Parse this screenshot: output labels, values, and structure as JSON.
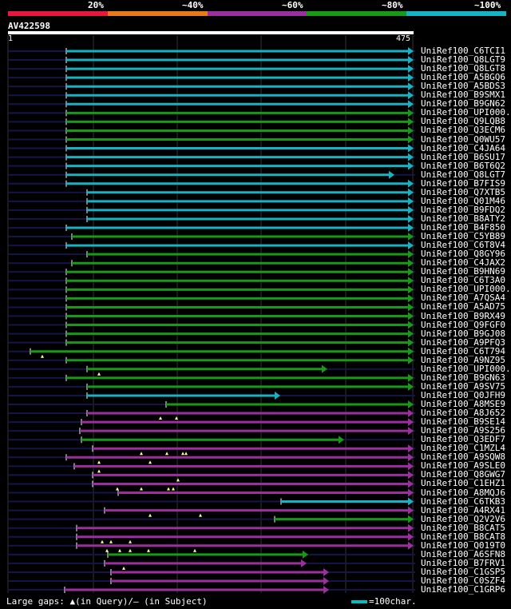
{
  "legend": {
    "labels": [
      "20%",
      "~40%",
      "~60%",
      "~80%",
      "~100%"
    ],
    "colors": [
      "#e8173c",
      "#e87a1b",
      "#9b2fa0",
      "#189a18",
      "#16b3c4"
    ]
  },
  "query": {
    "id": "AV422598",
    "start": "1",
    "end": "475"
  },
  "footer": {
    "gaps_text": "Large gaps: ▲(in Query)/– (in Subject)",
    "scale_text": "=100char."
  },
  "rows": [
    {
      "label": "UniRef100_C6TCI1",
      "color": "cyan",
      "x1": 83,
      "x2": 511
    },
    {
      "label": "UniRef100_Q8LGT9",
      "color": "cyan",
      "x1": 83,
      "x2": 511
    },
    {
      "label": "UniRef100_Q8LGT8",
      "color": "cyan",
      "x1": 83,
      "x2": 511
    },
    {
      "label": "UniRef100_A5BGQ6",
      "color": "cyan",
      "x1": 83,
      "x2": 511
    },
    {
      "label": "UniRef100_A5BDS3",
      "color": "cyan",
      "x1": 83,
      "x2": 511
    },
    {
      "label": "UniRef100_B9SMX1",
      "color": "cyan",
      "x1": 83,
      "x2": 511
    },
    {
      "label": "UniRef100_B9GN62",
      "color": "cyan",
      "x1": 83,
      "x2": 511
    },
    {
      "label": "UniRef100_UPI000..",
      "color": "green",
      "x1": 83,
      "x2": 511
    },
    {
      "label": "UniRef100_Q9LQB8",
      "color": "green",
      "x1": 83,
      "x2": 511
    },
    {
      "label": "UniRef100_Q3ECM6",
      "color": "green",
      "x1": 83,
      "x2": 511
    },
    {
      "label": "UniRef100_Q0WU57",
      "color": "green",
      "x1": 83,
      "x2": 511
    },
    {
      "label": "UniRef100_C4JA64",
      "color": "cyan",
      "x1": 83,
      "x2": 511
    },
    {
      "label": "UniRef100_B6SU17",
      "color": "cyan",
      "x1": 83,
      "x2": 511
    },
    {
      "label": "UniRef100_B6T6Q2",
      "color": "cyan",
      "x1": 83,
      "x2": 511
    },
    {
      "label": "UniRef100_Q8LGT7",
      "color": "cyan",
      "x1": 83,
      "x2": 487
    },
    {
      "label": "UniRef100_B7FIS9",
      "color": "cyan",
      "x1": 83,
      "x2": 511
    },
    {
      "label": "UniRef100_Q7XTB5",
      "color": "cyan",
      "x1": 109,
      "x2": 511
    },
    {
      "label": "UniRef100_Q01M46",
      "color": "cyan",
      "x1": 109,
      "x2": 511
    },
    {
      "label": "UniRef100_B9FDQ2",
      "color": "cyan",
      "x1": 109,
      "x2": 511
    },
    {
      "label": "UniRef100_B8ATY2",
      "color": "cyan",
      "x1": 109,
      "x2": 511
    },
    {
      "label": "UniRef100_B4F850",
      "color": "cyan",
      "x1": 83,
      "x2": 511
    },
    {
      "label": "UniRef100_C5YB89",
      "color": "green",
      "x1": 90,
      "x2": 511
    },
    {
      "label": "UniRef100_C6T8V4",
      "color": "cyan",
      "x1": 83,
      "x2": 511
    },
    {
      "label": "UniRef100_Q8GY96",
      "color": "green",
      "x1": 109,
      "x2": 511
    },
    {
      "label": "UniRef100_C4JAX2",
      "color": "green",
      "x1": 90,
      "x2": 511
    },
    {
      "label": "UniRef100_B9HN69",
      "color": "green",
      "x1": 83,
      "x2": 511
    },
    {
      "label": "UniRef100_C6T3A0",
      "color": "green",
      "x1": 83,
      "x2": 511
    },
    {
      "label": "UniRef100_UPI000..",
      "color": "green",
      "x1": 83,
      "x2": 511
    },
    {
      "label": "UniRef100_A7QSA4",
      "color": "green",
      "x1": 83,
      "x2": 511
    },
    {
      "label": "UniRef100_A5AD75",
      "color": "green",
      "x1": 83,
      "x2": 511
    },
    {
      "label": "UniRef100_B9RX49",
      "color": "green",
      "x1": 83,
      "x2": 511
    },
    {
      "label": "UniRef100_Q9FGF0",
      "color": "green",
      "x1": 83,
      "x2": 511
    },
    {
      "label": "UniRef100_B9GJ08",
      "color": "green",
      "x1": 83,
      "x2": 511
    },
    {
      "label": "UniRef100_A9PFQ3",
      "color": "green",
      "x1": 83,
      "x2": 511
    },
    {
      "label": "UniRef100_C6T794",
      "color": "green",
      "x1": 38,
      "x2": 511,
      "tri": [
        53
      ]
    },
    {
      "label": "UniRef100_A9NZ95",
      "color": "green",
      "x1": 83,
      "x2": 511
    },
    {
      "label": "UniRef100_UPI000..",
      "color": "green",
      "x1": 109,
      "x2": 403,
      "tri": [
        124
      ]
    },
    {
      "label": "UniRef100_B9GN63",
      "color": "green",
      "x1": 83,
      "x2": 511
    },
    {
      "label": "UniRef100_A9SV75",
      "color": "green",
      "x1": 109,
      "x2": 511
    },
    {
      "label": "UniRef100_Q0JFH9",
      "color": "cyan",
      "x1": 109,
      "x2": 344
    },
    {
      "label": "UniRef100_A8MSE9",
      "color": "green",
      "x1": 208,
      "x2": 511
    },
    {
      "label": "UniRef100_A8J652",
      "color": "purple",
      "x1": 109,
      "x2": 511,
      "tri": [
        201,
        221
      ]
    },
    {
      "label": "UniRef100_B9SE14",
      "color": "purple",
      "x1": 102,
      "x2": 511
    },
    {
      "label": "UniRef100_A9S256",
      "color": "purple",
      "x1": 100,
      "x2": 511
    },
    {
      "label": "UniRef100_Q3EDF7",
      "color": "green",
      "x1": 102,
      "x2": 424
    },
    {
      "label": "UniRef100_C1MZL4",
      "color": "purple",
      "x1": 116,
      "x2": 511,
      "tri": [
        177,
        209,
        229,
        233
      ]
    },
    {
      "label": "UniRef100_A9SQW8",
      "color": "purple",
      "x1": 83,
      "x2": 511,
      "tri": [
        124,
        188
      ]
    },
    {
      "label": "UniRef100_A9SLE0",
      "color": "purple",
      "x1": 93,
      "x2": 511,
      "tri": [
        124
      ]
    },
    {
      "label": "UniRef100_Q8GWG7",
      "color": "purple",
      "x1": 116,
      "x2": 511,
      "tri": [
        223
      ]
    },
    {
      "label": "UniRef100_C1EHZ1",
      "color": "purple",
      "x1": 116,
      "x2": 511,
      "tri": [
        147,
        177,
        211,
        217
      ]
    },
    {
      "label": "UniRef100_A8MQJ6",
      "color": "purple",
      "x1": 148,
      "x2": 511
    },
    {
      "label": "UniRef100_C6TKB3",
      "color": "cyan",
      "x1": 352,
      "x2": 511
    },
    {
      "label": "UniRef100_A4RX41",
      "color": "purple",
      "x1": 131,
      "x2": 511,
      "tri": [
        188,
        251
      ]
    },
    {
      "label": "UniRef100_Q2V2V6",
      "color": "green",
      "x1": 344,
      "x2": 511
    },
    {
      "label": "UniRef100_B8CAT5",
      "color": "purple",
      "x1": 96,
      "x2": 511
    },
    {
      "label": "UniRef100_B8CAT8",
      "color": "purple",
      "x1": 96,
      "x2": 511,
      "tri": [
        128,
        139,
        163
      ]
    },
    {
      "label": "UniRef100_Q019T0",
      "color": "purple",
      "x1": 96,
      "x2": 511,
      "tri": [
        134,
        150,
        163,
        186,
        244
      ]
    },
    {
      "label": "UniRef100_A6SFN8",
      "color": "green",
      "x1": 135,
      "x2": 379
    },
    {
      "label": "UniRef100_B7FRV1",
      "color": "purple",
      "x1": 131,
      "x2": 377,
      "tri": [
        155
      ]
    },
    {
      "label": "UniRef100_C1GSP5",
      "color": "purple",
      "x1": 139,
      "x2": 405
    },
    {
      "label": "UniRef100_C0SZF4",
      "color": "purple",
      "x1": 139,
      "x2": 405
    },
    {
      "label": "UniRef100_C1GRP6",
      "color": "purple",
      "x1": 81,
      "x2": 405
    }
  ]
}
